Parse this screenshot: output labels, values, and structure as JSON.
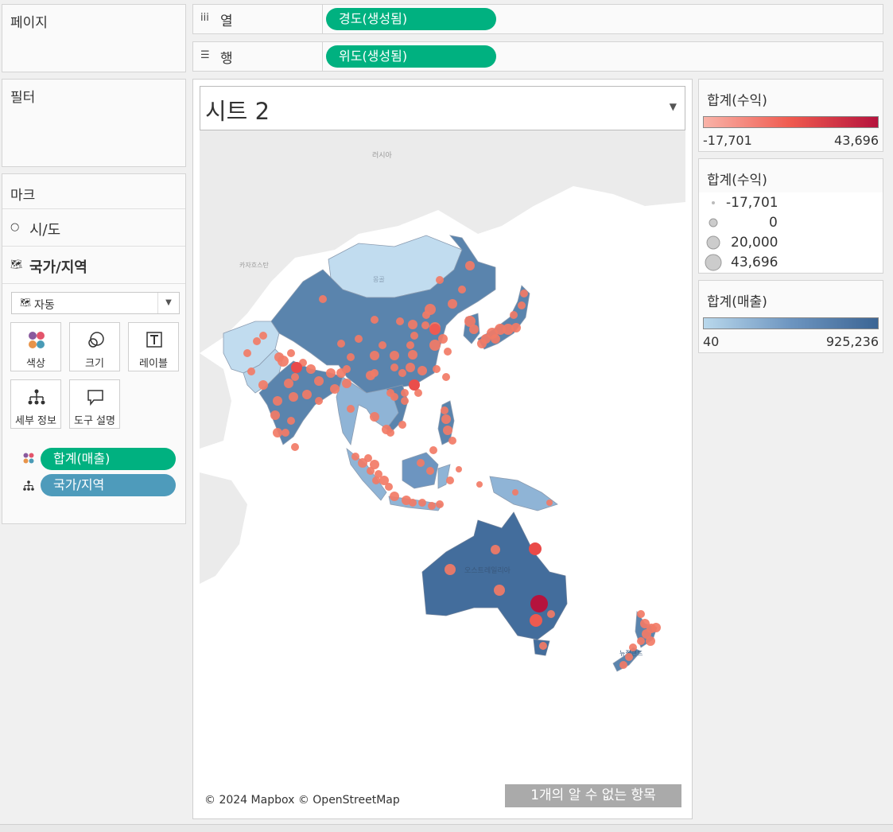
{
  "pages": {
    "title": "페이지"
  },
  "filters": {
    "title": "필터"
  },
  "shelves": {
    "columns": {
      "label": "열",
      "pill": "경도(생성됨)",
      "icon": "columns-icon"
    },
    "rows": {
      "label": "행",
      "pill": "위도(생성됨)",
      "icon": "rows-icon"
    }
  },
  "marks": {
    "title": "마크",
    "layers": [
      {
        "label": "시/도",
        "icon": "circle-mark-icon"
      },
      {
        "label": "국가/지역",
        "icon": "map-mark-icon"
      }
    ],
    "mark_type": "자동",
    "buttons": {
      "color": "색상",
      "size": "크기",
      "label": "레이블",
      "detail": "세부 정보",
      "tooltip": "도구 설명"
    },
    "fields": [
      {
        "label": "합계(매출)",
        "color": "#00b180",
        "icon": "color-icon"
      },
      {
        "label": "국가/지역",
        "color": "#4e9bbb",
        "icon": "detail-icon"
      }
    ]
  },
  "legends": {
    "profit_color": {
      "title": "합계(수익)",
      "min": "-17,701",
      "max": "43,696",
      "from": "#f9b3a8",
      "to": "#b5133d"
    },
    "profit_size": {
      "title": "합계(수익)",
      "items": [
        "-17,701",
        "0",
        "20,000",
        "43,696"
      ]
    },
    "sales_color": {
      "title": "합계(매출)",
      "min": "40",
      "max": "925,236",
      "from": "#b9d8ec",
      "to": "#3c6594"
    }
  },
  "view": {
    "title": "시트 2",
    "map_labels": {
      "russia": "러시아",
      "kazakhstan": "카자흐스탄",
      "mongolia": "몽골",
      "australia": "오스트레일리아",
      "new_zealand": "뉴질랜드"
    },
    "attribution": "© 2024 Mapbox © OpenStreetMap",
    "unknown_items": "1개의 알 수 없는 항목"
  }
}
